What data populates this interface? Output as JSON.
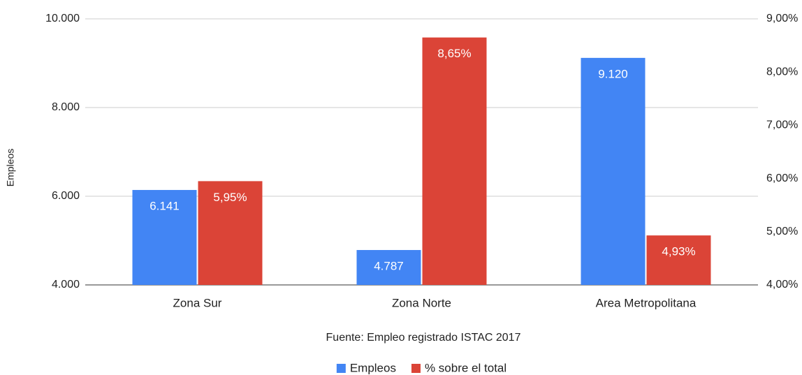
{
  "chart_data": {
    "type": "bar",
    "categories": [
      "Zona Sur",
      "Zona Norte",
      "Area Metropolitana"
    ],
    "y_label": "Empleos",
    "annotation": "Fuente: Empleo registrado ISTAC 2017",
    "series": [
      {
        "name": "Empleos",
        "color": "#4285f4",
        "values": [
          6141,
          4787,
          9120
        ],
        "value_labels": [
          "6.141",
          "4.787",
          "9.120"
        ]
      },
      {
        "name": "% sobre el total",
        "color": "#db4437",
        "axis": "y2",
        "values": [
          5.95,
          8.65,
          4.93
        ],
        "value_labels": [
          "5,95%",
          "8,65%",
          "4,93%"
        ]
      }
    ],
    "ylim": [
      4000,
      10000
    ],
    "yticks": [
      {
        "value": 4000,
        "label": "4.000"
      },
      {
        "value": 6000,
        "label": "6.000"
      },
      {
        "value": 8000,
        "label": "8.000"
      },
      {
        "value": 10000,
        "label": "10.000"
      }
    ],
    "y2lim": [
      4,
      9
    ],
    "y2ticks": [
      {
        "value": 4,
        "label": "4,00%"
      },
      {
        "value": 5,
        "label": "5,00%"
      },
      {
        "value": 6,
        "label": "6,00%"
      },
      {
        "value": 7,
        "label": "7,00%"
      },
      {
        "value": 8,
        "label": "8,00%"
      },
      {
        "value": 9,
        "label": "9,00%"
      }
    ],
    "grid": true,
    "legend": "bottom"
  }
}
